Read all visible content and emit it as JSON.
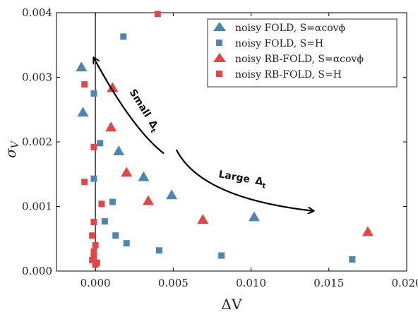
{
  "chart_data": {
    "type": "scatter",
    "title": "",
    "xlabel": "ΔV",
    "ylabel": "σ",
    "ylabel_sub": "V",
    "xlim": [
      -0.0025,
      0.02
    ],
    "ylim": [
      0,
      0.004
    ],
    "xticks": [
      0,
      0.005,
      0.01,
      0.015,
      0.02
    ],
    "xtick_labels": [
      "0.000",
      "0.005",
      "0.010",
      "0.015",
      "0.020"
    ],
    "yticks": [
      0,
      0.001,
      0.002,
      0.003,
      0.004
    ],
    "ytick_labels": [
      "0.000",
      "0.001",
      "0.002",
      "0.003",
      "0.004"
    ],
    "grid": false,
    "legend_position": "top-right",
    "vertical_reference_line_x": 0,
    "series": [
      {
        "name": "noisy FOLD, S=αcovϕ",
        "marker": "triangle",
        "color": "#4f86b0",
        "points": [
          {
            "x": -0.0009,
            "y": 0.00315
          },
          {
            "x": -0.0008,
            "y": 0.00245
          },
          {
            "x": 0.0015,
            "y": 0.00185
          },
          {
            "x": 0.0031,
            "y": 0.00145
          },
          {
            "x": 0.0049,
            "y": 0.00117
          },
          {
            "x": 0.0102,
            "y": 0.00083
          }
        ]
      },
      {
        "name": "noisy FOLD, S=H",
        "marker": "square",
        "color": "#4f86b0",
        "points": [
          {
            "x": 0.0018,
            "y": 0.00363
          },
          {
            "x": -0.0001,
            "y": 0.00275
          },
          {
            "x": 0.0003,
            "y": 0.00198
          },
          {
            "x": -0.0001,
            "y": 0.00143
          },
          {
            "x": 0.0011,
            "y": 0.00107
          },
          {
            "x": 0.0006,
            "y": 0.00077
          },
          {
            "x": 0.0013,
            "y": 0.00055
          },
          {
            "x": 0.002,
            "y": 0.00043
          },
          {
            "x": 0.0041,
            "y": 0.00032
          },
          {
            "x": 0.0081,
            "y": 0.00024
          },
          {
            "x": 0.0165,
            "y": 0.00018
          }
        ]
      },
      {
        "name": "noisy RB-FOLD, S=αcovϕ",
        "marker": "triangle",
        "color": "#e04848",
        "points": [
          {
            "x": 0.0011,
            "y": 0.00283
          },
          {
            "x": 0.001,
            "y": 0.00222
          },
          {
            "x": 0.002,
            "y": 0.00152
          },
          {
            "x": 0.0034,
            "y": 0.00108
          },
          {
            "x": 0.0069,
            "y": 0.00079
          },
          {
            "x": 0.0175,
            "y": 0.0006
          }
        ]
      },
      {
        "name": "noisy RB-FOLD, S=H",
        "marker": "square",
        "color": "#e04848",
        "points": [
          {
            "x": 0.004,
            "y": 0.00398
          },
          {
            "x": -0.0007,
            "y": 0.00289
          },
          {
            "x": -0.0001,
            "y": 0.00192
          },
          {
            "x": -0.0007,
            "y": 0.00138
          },
          {
            "x": 0.0004,
            "y": 0.00104
          },
          {
            "x": -0.0001,
            "y": 0.00076
          },
          {
            "x": -0.0002,
            "y": 0.00055
          },
          {
            "x": 0.0,
            "y": 0.0004
          },
          {
            "x": -0.0001,
            "y": 0.0003
          },
          {
            "x": -0.0001,
            "y": 0.00022
          },
          {
            "x": -0.0002,
            "y": 0.00017
          },
          {
            "x": 0.0001,
            "y": 0.00013
          },
          {
            "x": 0.0,
            "y": 0.0001
          }
        ]
      }
    ],
    "annotations": [
      {
        "text": "Small",
        "subscript": "Δ",
        "subscript2": "t",
        "arrow_from": [
          0.0044,
          0.00182
        ],
        "arrow_to": [
          -0.0001,
          0.0033
        ]
      },
      {
        "text": "Large",
        "subscript": "Δ",
        "subscript2": "t",
        "arrow_from": [
          0.0052,
          0.00188
        ],
        "arrow_to": [
          0.014,
          0.00093
        ]
      }
    ]
  }
}
